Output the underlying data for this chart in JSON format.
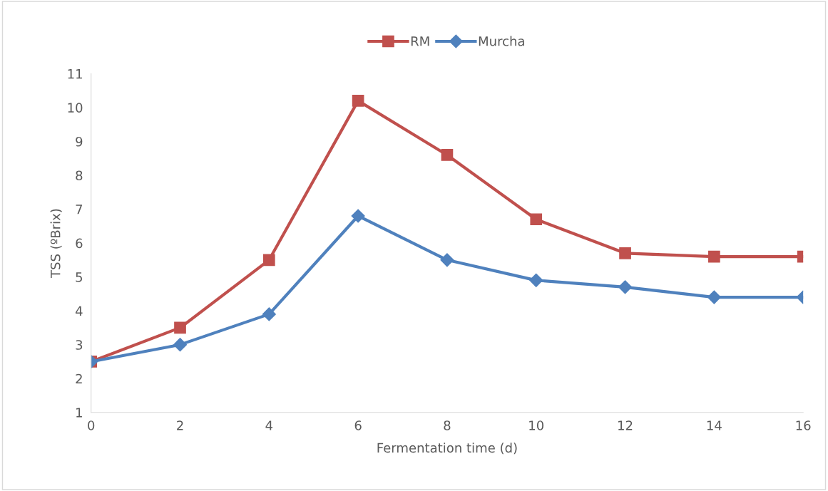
{
  "chart_data": {
    "type": "line",
    "xlabel": "Fermentation time (d)",
    "ylabel": "TSS (ºBrix)",
    "x": [
      0,
      2,
      4,
      6,
      8,
      10,
      12,
      14,
      16
    ],
    "series": [
      {
        "name": "RM",
        "color": "#c0504d",
        "marker": "square",
        "values": [
          2.5,
          3.5,
          5.5,
          10.2,
          8.6,
          6.7,
          5.7,
          5.6,
          5.6
        ]
      },
      {
        "name": "Murcha",
        "color": "#4f81bd",
        "marker": "diamond",
        "values": [
          2.5,
          3.0,
          3.9,
          6.8,
          5.5,
          4.9,
          4.7,
          4.4,
          4.4
        ]
      }
    ],
    "xlim": [
      0,
      16
    ],
    "xticks": [
      0,
      2,
      4,
      6,
      8,
      10,
      12,
      14,
      16
    ],
    "ylim": [
      1,
      11
    ],
    "yticks": [
      1,
      2,
      3,
      4,
      5,
      6,
      7,
      8,
      9,
      10,
      11
    ],
    "legend": "top",
    "line_style": "solid"
  }
}
